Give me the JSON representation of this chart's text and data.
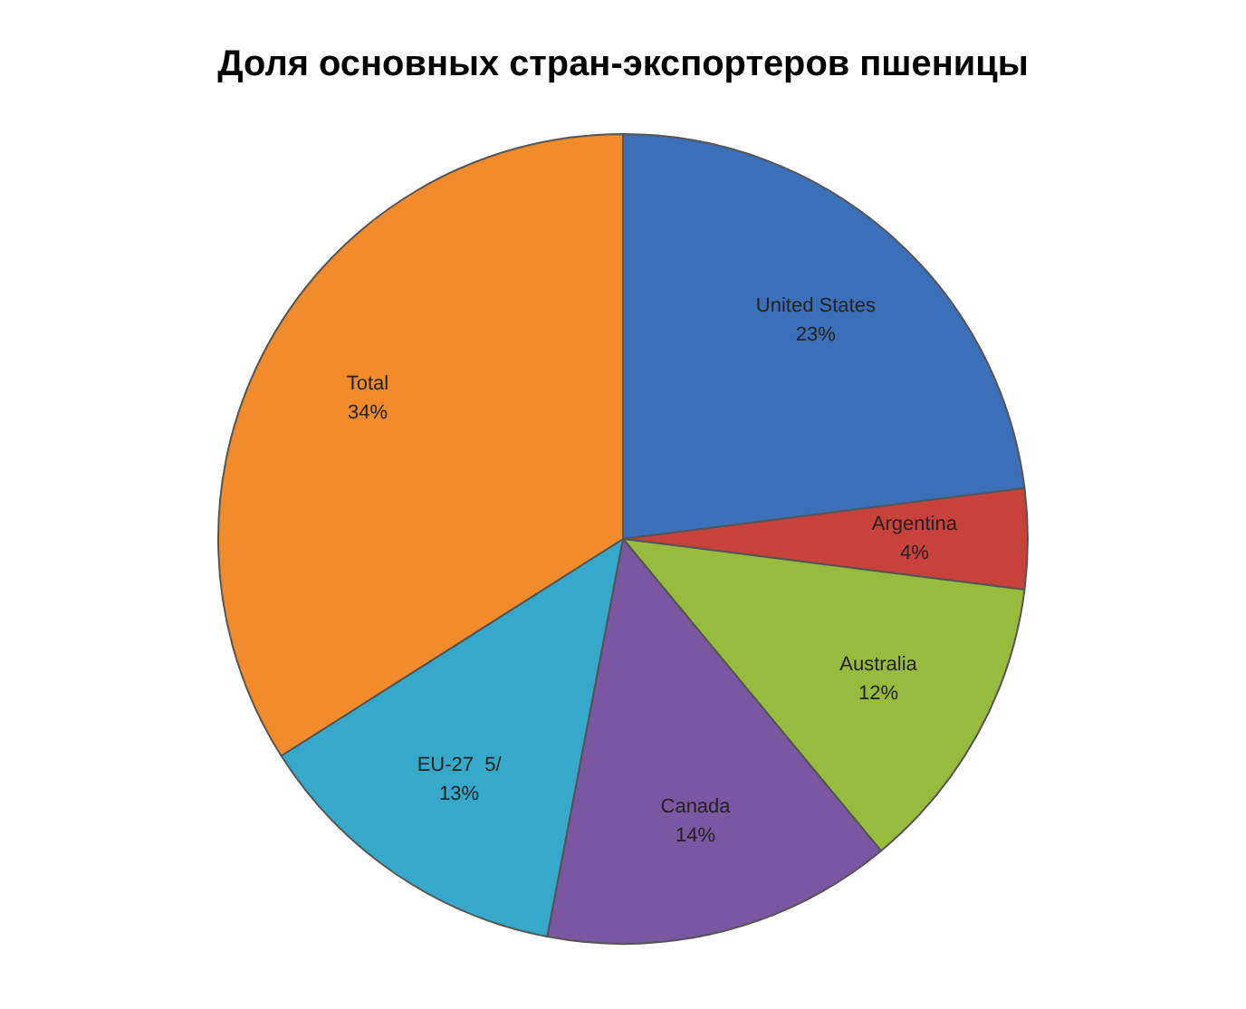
{
  "chart_data": {
    "type": "pie",
    "title": "Доля основных стран-экспортеров пшеницы",
    "categories": [
      "United States",
      "Argentina",
      "Australia",
      "Canada",
      "EU-27  5/",
      "Total"
    ],
    "values": [
      23,
      4,
      12,
      14,
      13,
      34
    ],
    "colors": [
      "#3b6fb8",
      "#c9413b",
      "#97bb3d",
      "#7b56a1",
      "#36a8c9",
      "#f28b2b"
    ],
    "value_labels": [
      "23%",
      "4%",
      "12%",
      "14%",
      "13%",
      "34%"
    ],
    "legend": false
  }
}
